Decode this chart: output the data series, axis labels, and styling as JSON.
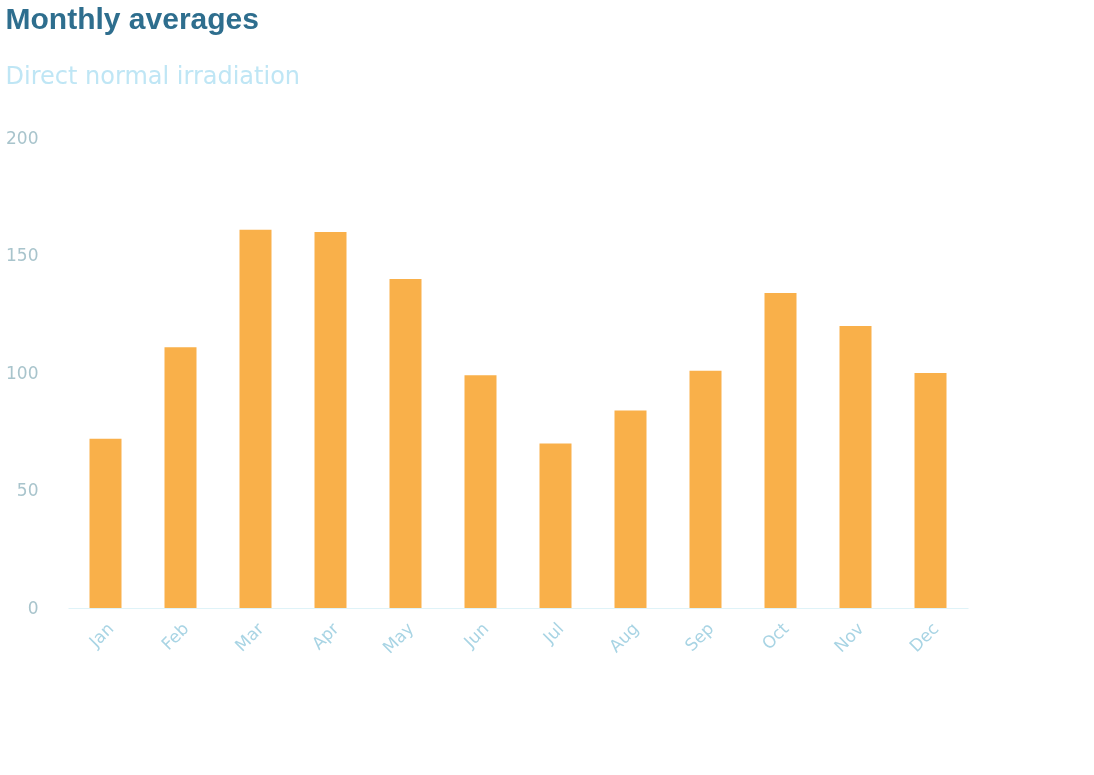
{
  "chart_data": {
    "type": "bar",
    "title": "Monthly averages",
    "subtitle": "Direct normal irradiation",
    "categories": [
      "Jan",
      "Feb",
      "Mar",
      "Apr",
      "May",
      "Jun",
      "Jul",
      "Aug",
      "Sep",
      "Oct",
      "Nov",
      "Dec"
    ],
    "values": [
      72,
      111,
      161,
      160,
      140,
      99,
      70,
      84,
      101,
      134,
      120,
      100
    ],
    "color": "#f9b04a",
    "ylim": [
      0,
      200
    ],
    "yticks": [
      0,
      50,
      100,
      150,
      200
    ]
  }
}
